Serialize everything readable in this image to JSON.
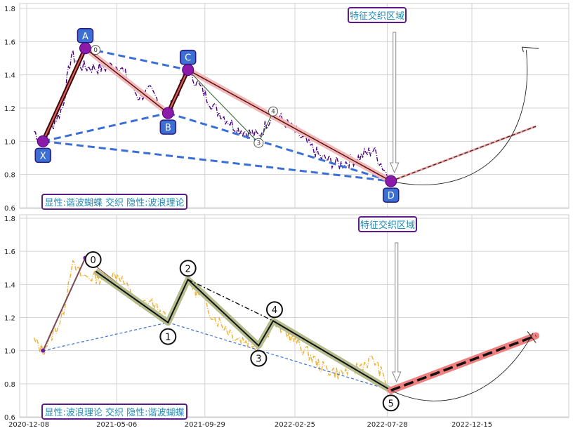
{
  "chart_data": [
    {
      "type": "line",
      "panel": "top",
      "ylim": [
        0.6,
        1.82
      ],
      "yticks": [
        "0.6",
        "0.8",
        "1.0",
        "1.2",
        "1.4",
        "1.6",
        "1.8"
      ],
      "grid": true,
      "annotation_top": "特征交织区域",
      "annotation_bottom": "显性:谐波蝴蝶 交织 隐性:波浪理论",
      "price_color": "#4b0082",
      "pattern_points": [
        {
          "label": "X",
          "x": "2021-01-04",
          "y": 1.0
        },
        {
          "label": "A",
          "x": "2021-03-15",
          "y": 1.56
        },
        {
          "label": "B",
          "x": "2021-07-30",
          "y": 1.17
        },
        {
          "label": "C",
          "x": "2021-09-01",
          "y": 1.43
        },
        {
          "label": "D",
          "x": "2022-08-03",
          "y": 0.76
        }
      ],
      "wave_numbers": [
        {
          "label": "0",
          "x": "2021-04-01",
          "y": 1.55
        },
        {
          "label": "3",
          "x": "2021-12-27",
          "y": 0.99
        },
        {
          "label": "4",
          "x": "2022-01-20",
          "y": 1.18
        }
      ],
      "projection": {
        "from": [
          "2022-08-03",
          0.76
        ],
        "to": [
          "2023-03-31",
          1.09
        ]
      },
      "projection_end_marker": [
        "2023-03-15",
        1.55
      ]
    },
    {
      "type": "line",
      "panel": "bottom",
      "ylim": [
        0.6,
        1.82
      ],
      "yticks": [
        "0.6",
        "0.8",
        "1.0",
        "1.2",
        "1.4",
        "1.6",
        "1.8"
      ],
      "xticks": [
        "2020-12-08",
        "2021-05-06",
        "2021-09-29",
        "2022-02-25",
        "2022-07-28",
        "2022-12-15"
      ],
      "grid": true,
      "annotation_top": "特征交织区域",
      "annotation_bottom": "显性:波浪理论 交织 隐性:谐波蝴蝶",
      "price_color": "#f0b030",
      "wave_points": [
        {
          "label": "0",
          "x": "2021-04-01",
          "y": 1.48
        },
        {
          "label": "1",
          "x": "2021-07-30",
          "y": 1.17
        },
        {
          "label": "2",
          "x": "2021-09-01",
          "y": 1.43
        },
        {
          "label": "3",
          "x": "2021-12-27",
          "y": 1.03
        },
        {
          "label": "4",
          "x": "2022-01-20",
          "y": 1.18
        },
        {
          "label": "5",
          "x": "2022-08-03",
          "y": 0.76
        }
      ],
      "harmonic_points": [
        {
          "x": "2021-01-04",
          "y": 1.0
        },
        {
          "x": "2021-03-15",
          "y": 1.56
        },
        {
          "x": "2021-07-30",
          "y": 1.17
        },
        {
          "x": "2022-08-03",
          "y": 0.76
        }
      ],
      "projection": {
        "from": [
          "2022-08-03",
          0.76
        ],
        "to": [
          "2023-03-31",
          1.09
        ]
      }
    }
  ]
}
